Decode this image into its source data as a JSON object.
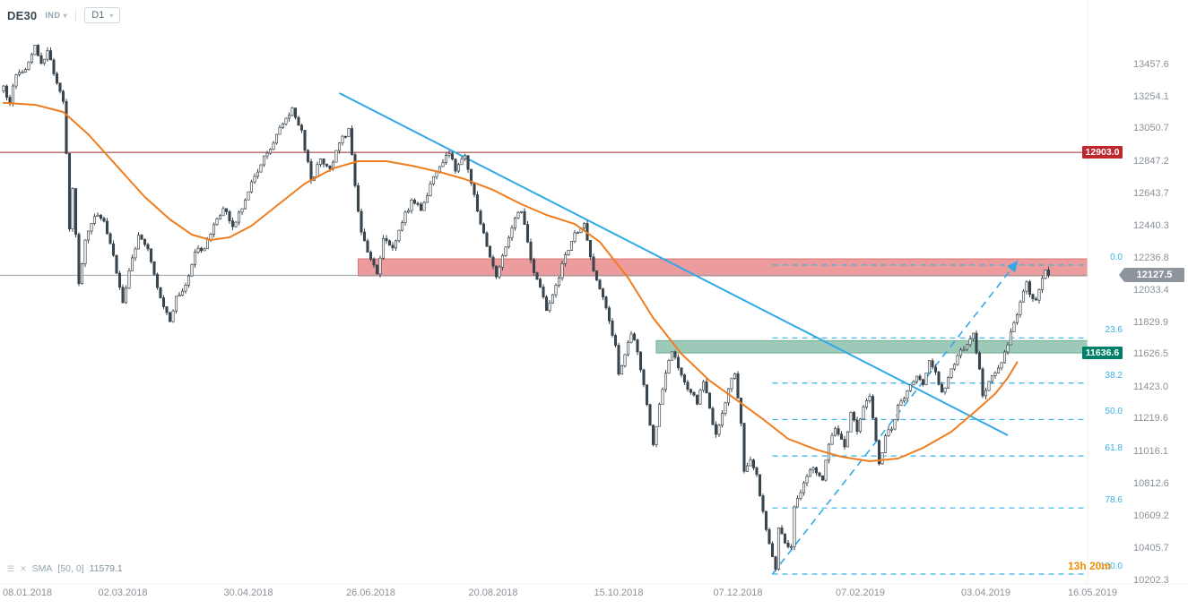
{
  "header": {
    "symbol": "DE30",
    "instrument_type": "IND",
    "timeframe": "D1"
  },
  "indicator": {
    "name": "SMA",
    "params": "[50, 0]",
    "value": "11579.1"
  },
  "countdown": {
    "text": "13h 20m"
  },
  "axis": {
    "price_labels": [
      "13457.6",
      "13254.1",
      "13050.7",
      "12847.2",
      "12643.7",
      "12440.3",
      "12236.8",
      "12033.4",
      "11829.9",
      "11626.5",
      "11423.0",
      "11219.6",
      "11016.1",
      "10812.6",
      "10609.2",
      "10405.7",
      "10202.3"
    ],
    "date_labels": [
      {
        "text": "08.01.2018",
        "i": 0
      },
      {
        "text": "02.03.2018",
        "i": 38
      },
      {
        "text": "30.04.2018",
        "i": 78
      },
      {
        "text": "26.06.2018",
        "i": 117
      },
      {
        "text": "20.08.2018",
        "i": 156
      },
      {
        "text": "15.10.2018",
        "i": 196
      },
      {
        "text": "07.12.2018",
        "i": 234
      },
      {
        "text": "07.02.2019",
        "i": 273
      },
      {
        "text": "03.04.2019",
        "i": 313
      },
      {
        "text": "16.05.2019",
        "i": 347
      }
    ]
  },
  "badges": {
    "alert": {
      "text": "12903.0",
      "price": 12903.0
    },
    "support": {
      "text": "11636.6",
      "price": 11636.6
    },
    "current": {
      "text": "12127.5",
      "price": 12127.5
    }
  },
  "chart_data": {
    "type": "candlestick",
    "symbol": "DE30",
    "timeframe": "D1",
    "price_axis": {
      "min": 10202.3,
      "max": 13457.6,
      "tick_interval": 203.45
    },
    "x_axis": {
      "start_label": "08.01.2018",
      "end_label": "16.05.2019",
      "unit": "trading-day-index"
    },
    "candle_count": 334,
    "noise": 40,
    "last_close": 12127.5,
    "anchors": [
      [
        0,
        13320
      ],
      [
        2,
        13220
      ],
      [
        4,
        13390
      ],
      [
        7,
        13430
      ],
      [
        10,
        13580
      ],
      [
        12,
        13470
      ],
      [
        14,
        13540
      ],
      [
        16,
        13400
      ],
      [
        19,
        13230
      ],
      [
        20,
        12900
      ],
      [
        21,
        12420
      ],
      [
        22,
        12680
      ],
      [
        24,
        12080
      ],
      [
        26,
        12350
      ],
      [
        29,
        12500
      ],
      [
        32,
        12470
      ],
      [
        35,
        12250
      ],
      [
        38,
        11950
      ],
      [
        40,
        12150
      ],
      [
        43,
        12380
      ],
      [
        46,
        12290
      ],
      [
        49,
        12050
      ],
      [
        53,
        11840
      ],
      [
        55,
        12000
      ],
      [
        58,
        12060
      ],
      [
        61,
        12280
      ],
      [
        64,
        12300
      ],
      [
        67,
        12450
      ],
      [
        70,
        12550
      ],
      [
        73,
        12440
      ],
      [
        77,
        12600
      ],
      [
        80,
        12750
      ],
      [
        84,
        12900
      ],
      [
        88,
        13060
      ],
      [
        92,
        13180
      ],
      [
        95,
        13040
      ],
      [
        98,
        12720
      ],
      [
        101,
        12860
      ],
      [
        104,
        12800
      ],
      [
        107,
        12960
      ],
      [
        110,
        13050
      ],
      [
        112,
        12690
      ],
      [
        114,
        12400
      ],
      [
        117,
        12230
      ],
      [
        119,
        12140
      ],
      [
        121,
        12360
      ],
      [
        124,
        12300
      ],
      [
        127,
        12460
      ],
      [
        130,
        12600
      ],
      [
        133,
        12540
      ],
      [
        136,
        12700
      ],
      [
        139,
        12810
      ],
      [
        142,
        12900
      ],
      [
        144,
        12790
      ],
      [
        147,
        12880
      ],
      [
        150,
        12640
      ],
      [
        152,
        12450
      ],
      [
        155,
        12240
      ],
      [
        157,
        12120
      ],
      [
        160,
        12310
      ],
      [
        163,
        12490
      ],
      [
        165,
        12530
      ],
      [
        167,
        12340
      ],
      [
        169,
        12140
      ],
      [
        171,
        12050
      ],
      [
        173,
        11900
      ],
      [
        176,
        12060
      ],
      [
        179,
        12260
      ],
      [
        182,
        12390
      ],
      [
        185,
        12460
      ],
      [
        187,
        12240
      ],
      [
        189,
        12100
      ],
      [
        191,
        11990
      ],
      [
        193,
        11840
      ],
      [
        195,
        11680
      ],
      [
        196,
        11500
      ],
      [
        198,
        11630
      ],
      [
        200,
        11760
      ],
      [
        202,
        11640
      ],
      [
        204,
        11440
      ],
      [
        206,
        11180
      ],
      [
        207,
        11060
      ],
      [
        209,
        11310
      ],
      [
        211,
        11510
      ],
      [
        213,
        11640
      ],
      [
        216,
        11500
      ],
      [
        219,
        11390
      ],
      [
        221,
        11320
      ],
      [
        223,
        11460
      ],
      [
        225,
        11290
      ],
      [
        227,
        11120
      ],
      [
        229,
        11260
      ],
      [
        231,
        11410
      ],
      [
        233,
        11510
      ],
      [
        235,
        11190
      ],
      [
        236,
        10890
      ],
      [
        238,
        10960
      ],
      [
        240,
        10870
      ],
      [
        242,
        10640
      ],
      [
        244,
        10430
      ],
      [
        246,
        10270
      ],
      [
        247,
        10530
      ],
      [
        249,
        10440
      ],
      [
        251,
        10410
      ],
      [
        252,
        10660
      ],
      [
        254,
        10760
      ],
      [
        256,
        10860
      ],
      [
        258,
        10910
      ],
      [
        261,
        10840
      ],
      [
        263,
        11060
      ],
      [
        265,
        11160
      ],
      [
        268,
        11040
      ],
      [
        270,
        11260
      ],
      [
        272,
        11140
      ],
      [
        274,
        11290
      ],
      [
        276,
        11360
      ],
      [
        278,
        11090
      ],
      [
        279,
        10940
      ],
      [
        281,
        11110
      ],
      [
        283,
        11160
      ],
      [
        285,
        11310
      ],
      [
        287,
        11350
      ],
      [
        289,
        11430
      ],
      [
        291,
        11490
      ],
      [
        293,
        11440
      ],
      [
        295,
        11590
      ],
      [
        297,
        11520
      ],
      [
        299,
        11390
      ],
      [
        301,
        11480
      ],
      [
        303,
        11560
      ],
      [
        305,
        11660
      ],
      [
        307,
        11690
      ],
      [
        309,
        11760
      ],
      [
        311,
        11540
      ],
      [
        312,
        11370
      ],
      [
        314,
        11460
      ],
      [
        316,
        11510
      ],
      [
        318,
        11570
      ],
      [
        320,
        11690
      ],
      [
        322,
        11830
      ],
      [
        324,
        11960
      ],
      [
        326,
        12090
      ],
      [
        327,
        12010
      ],
      [
        329,
        11970
      ],
      [
        331,
        12110
      ],
      [
        332,
        12160
      ],
      [
        333,
        12127.5
      ]
    ],
    "sma50": [
      [
        0,
        13215
      ],
      [
        10,
        13203
      ],
      [
        19,
        13158
      ],
      [
        27,
        13017
      ],
      [
        36,
        12819
      ],
      [
        45,
        12621
      ],
      [
        53,
        12480
      ],
      [
        60,
        12384
      ],
      [
        66,
        12350
      ],
      [
        72,
        12367
      ],
      [
        79,
        12440
      ],
      [
        87,
        12565
      ],
      [
        96,
        12706
      ],
      [
        105,
        12802
      ],
      [
        113,
        12847
      ],
      [
        122,
        12847
      ],
      [
        130,
        12819
      ],
      [
        139,
        12779
      ],
      [
        147,
        12734
      ],
      [
        156,
        12666
      ],
      [
        165,
        12576
      ],
      [
        173,
        12508
      ],
      [
        182,
        12451
      ],
      [
        190,
        12338
      ],
      [
        199,
        12112
      ],
      [
        207,
        11858
      ],
      [
        216,
        11632
      ],
      [
        225,
        11462
      ],
      [
        233,
        11349
      ],
      [
        242,
        11219
      ],
      [
        250,
        11095
      ],
      [
        259,
        11027
      ],
      [
        267,
        10982
      ],
      [
        276,
        10954
      ],
      [
        285,
        10971
      ],
      [
        293,
        11038
      ],
      [
        302,
        11140
      ],
      [
        310,
        11275
      ],
      [
        316,
        11380
      ],
      [
        320,
        11480
      ],
      [
        323,
        11579.1
      ]
    ],
    "zones": [
      {
        "name": "resistance",
        "from_index": 113,
        "price_top": 12231,
        "price_bottom": 12124
      },
      {
        "name": "support",
        "from_index": 208,
        "price_top": 11715,
        "price_bottom": 11637
      }
    ],
    "horizontal_lines": [
      {
        "name": "alert-line",
        "price": 12903.0
      },
      {
        "name": "current-price-line",
        "price": 12127.5
      }
    ],
    "fibonacci": {
      "from_index": 245,
      "levels": [
        {
          "label": "0.0",
          "price": 12192
        },
        {
          "label": "23.6",
          "price": 11732
        },
        {
          "label": "38.2",
          "price": 11447
        },
        {
          "label": "50.0",
          "price": 11217
        },
        {
          "label": "61.8",
          "price": 10987
        },
        {
          "label": "78.6",
          "price": 10659
        },
        {
          "label": "100.0",
          "price": 10242
        }
      ]
    },
    "trendlines": [
      {
        "name": "descending-trendline",
        "from": [
          107,
          13277
        ],
        "to": [
          320,
          11118
        ],
        "style": "solid",
        "arrow": false
      },
      {
        "name": "ascending-trendline",
        "from": [
          245,
          10242
        ],
        "to": [
          323,
          12214
        ],
        "style": "dashed",
        "arrow": true
      }
    ]
  },
  "colors": {
    "accent_blue": "#2fa9e8",
    "fib": "#35b1e8",
    "sma_orange": "#ef7d1f",
    "candle": "#3a454d",
    "zone_red": "#e98b8b",
    "zone_red_border": "#d97575",
    "zone_green": "#8cc0ac",
    "zone_green_border": "#72b094",
    "line_dark_red": "#9c2b23",
    "current_line": "#9aa0a6",
    "badge_red": "#c0272d",
    "badge_green": "#00806a",
    "badge_gray": "#8f959d",
    "countdown_orange": "#f08c00",
    "axis_text": "#8a9299"
  }
}
